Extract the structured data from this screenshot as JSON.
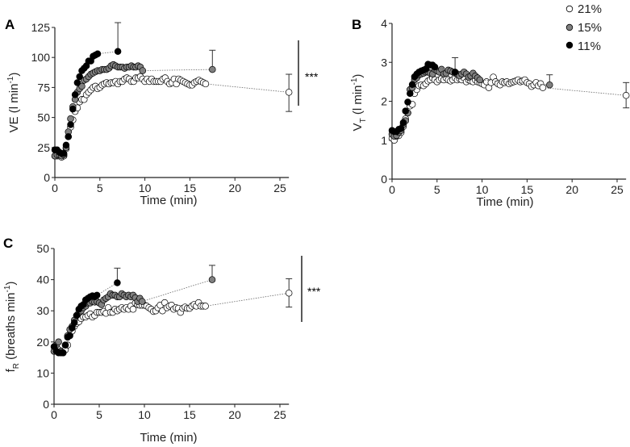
{
  "legend": [
    {
      "label": "21%",
      "color": "#ffffff"
    },
    {
      "label": "15%",
      "color": "#808080"
    },
    {
      "label": "11%",
      "color": "#000000"
    }
  ],
  "chart_data": [
    {
      "panel": "A",
      "type": "scatter",
      "xlabel": "Time (min)",
      "ylabel": {
        "main": "VE (l min",
        "sup": "-1",
        "close": ")"
      },
      "xticks": [
        0,
        5,
        10,
        15,
        20,
        25
      ],
      "yticks": [
        0,
        25,
        50,
        75,
        100,
        125
      ],
      "xlim": [
        0,
        26
      ],
      "ylim": [
        0,
        125
      ],
      "significance": "***",
      "series": [
        {
          "name": "21%",
          "t0": 0,
          "dt": 0.25,
          "values": [
            18,
            18,
            18,
            17,
            18,
            24,
            34,
            42,
            48,
            55,
            58,
            63,
            65,
            65,
            69,
            71,
            73,
            75,
            76,
            74,
            75,
            77,
            78,
            79,
            78,
            79,
            79,
            80,
            78,
            80,
            80,
            82,
            83,
            82,
            80,
            80,
            83,
            83,
            84,
            82,
            80,
            82,
            80,
            82,
            80,
            80,
            80,
            80,
            82,
            83,
            80,
            78,
            79,
            82,
            78,
            82,
            81,
            80,
            79,
            78,
            77,
            77,
            79,
            80,
            81,
            80,
            79,
            78
          ],
          "end": {
            "x": 26,
            "y": 71,
            "err_hi": 86,
            "err_lo": 55
          }
        },
        {
          "name": "15%",
          "t0": 0,
          "dt": 0.25,
          "values": [
            18,
            19,
            19,
            18,
            19,
            25,
            38,
            49,
            59,
            65,
            71,
            74,
            76,
            81,
            82,
            84,
            86,
            87,
            88,
            89,
            89,
            90,
            90,
            90,
            91,
            93,
            94,
            93,
            92,
            92,
            92,
            91,
            92,
            92,
            93,
            92,
            92,
            93,
            92,
            89
          ],
          "end": {
            "x": 17.5,
            "y": 90,
            "err_hi": 106
          }
        },
        {
          "name": "11%",
          "t0": 0,
          "dt": 0.25,
          "values": [
            23,
            23,
            21,
            20,
            20,
            27,
            34,
            44,
            57,
            69,
            79,
            84,
            89,
            91,
            93,
            97,
            97,
            101,
            102,
            103
          ],
          "end": {
            "x": 7,
            "y": 105,
            "err_hi": 129
          }
        }
      ]
    },
    {
      "panel": "B",
      "type": "scatter",
      "xlabel": "Time (min)",
      "ylabel": {
        "main": "V",
        "sub": "T",
        "rest": " (l min",
        "sup": "-1",
        "close": ")"
      },
      "xticks": [
        0,
        5,
        10,
        15,
        20,
        25
      ],
      "yticks": [
        0,
        1,
        2,
        3,
        4
      ],
      "xlim": [
        0,
        26
      ],
      "ylim": [
        0,
        4
      ],
      "series": [
        {
          "name": "21%",
          "t0": 0,
          "dt": 0.25,
          "values": [
            1.05,
            1.0,
            1.1,
            1.12,
            1.2,
            1.35,
            1.55,
            1.7,
            1.88,
            1.92,
            2.2,
            2.3,
            2.4,
            2.42,
            2.4,
            2.45,
            2.52,
            2.55,
            2.6,
            2.55,
            2.5,
            2.55,
            2.58,
            2.55,
            2.6,
            2.55,
            2.52,
            2.55,
            2.6,
            2.55,
            2.58,
            2.55,
            2.6,
            2.5,
            2.55,
            2.52,
            2.5,
            2.55,
            2.5,
            2.48,
            2.45,
            2.42,
            2.5,
            2.35,
            2.48,
            2.62,
            2.5,
            2.45,
            2.42,
            2.5,
            2.48,
            2.5,
            2.45,
            2.48,
            2.5,
            2.52,
            2.55,
            2.5,
            2.52,
            2.55,
            2.48,
            2.45,
            2.38,
            2.42,
            2.48,
            2.4,
            2.45,
            2.35
          ],
          "end": {
            "x": 26,
            "y": 2.15,
            "err_hi": 2.48,
            "err_lo": 1.83
          }
        },
        {
          "name": "15%",
          "t0": 0,
          "dt": 0.25,
          "values": [
            1.15,
            1.1,
            1.12,
            1.2,
            1.25,
            1.4,
            1.5,
            1.7,
            2.3,
            2.35,
            2.55,
            2.6,
            2.68,
            2.7,
            2.72,
            2.75,
            2.75,
            2.72,
            2.7,
            2.82,
            2.78,
            2.75,
            2.82,
            2.7,
            2.72,
            2.8,
            2.78,
            2.75,
            2.72,
            2.7,
            2.65,
            2.7,
            2.75,
            2.7,
            2.62,
            2.65,
            2.72,
            2.65,
            2.6,
            2.55
          ],
          "end": {
            "x": 17.5,
            "y": 2.42,
            "err_hi": 2.68
          }
        },
        {
          "name": "11%",
          "t0": 0,
          "dt": 0.25,
          "values": [
            1.25,
            1.22,
            1.22,
            1.28,
            1.3,
            1.45,
            1.75,
            1.98,
            2.2,
            2.43,
            2.63,
            2.7,
            2.75,
            2.78,
            2.8,
            2.83,
            2.95,
            2.93,
            2.93,
            2.88
          ],
          "end": {
            "x": 7,
            "y": 2.75,
            "err_hi": 3.12
          }
        }
      ]
    },
    {
      "panel": "C",
      "type": "scatter",
      "xlabel": "Time (min)",
      "ylabel": {
        "main": "f",
        "sub": "R",
        "rest": " (breaths min",
        "sup": "-1",
        "close": ")"
      },
      "xticks": [
        0,
        5,
        10,
        15,
        20,
        25
      ],
      "yticks": [
        0,
        10,
        20,
        30,
        40,
        50
      ],
      "xlim": [
        0,
        26
      ],
      "ylim": [
        0,
        50
      ],
      "significance": "***",
      "series": [
        {
          "name": "21%",
          "t0": 0,
          "dt": 0.25,
          "values": [
            17,
            18,
            17.5,
            17,
            17,
            17.5,
            19,
            22.5,
            23.5,
            25,
            26,
            26.5,
            27.5,
            28,
            28,
            28.5,
            29,
            28,
            28.5,
            29.5,
            29.5,
            29.5,
            29.8,
            29.2,
            31,
            29.5,
            29.5,
            30.5,
            30,
            30.5,
            31,
            30.5,
            31,
            30.5,
            31.5,
            30.5,
            32.5,
            32,
            31.8,
            31.8,
            31.8,
            31.5,
            31,
            30.5,
            29.8,
            30,
            31,
            31.8,
            30,
            32.6,
            31,
            31.5,
            31.8,
            30.5,
            31,
            30.8,
            29.5,
            30.8,
            31.2,
            30.8,
            30.8,
            31.5,
            32,
            31.5,
            32.6,
            31.5,
            31.5,
            31.5
          ],
          "end": {
            "x": 26,
            "y": 35.7,
            "err_hi": 40.3,
            "err_lo": 31.2
          }
        },
        {
          "name": "15%",
          "t0": 0,
          "dt": 0.25,
          "values": [
            17,
            19,
            20,
            17,
            16.5,
            19,
            22,
            24,
            25,
            27,
            28.5,
            29.5,
            30,
            31,
            31.5,
            32.5,
            32.5,
            33,
            32.8,
            33,
            32.5,
            32,
            33.5,
            34,
            34.5,
            35.5,
            35,
            35,
            34.5,
            34.5,
            35.5,
            35,
            34.5,
            35,
            34.5,
            35,
            34.2,
            33,
            34,
            33
          ],
          "end": {
            "x": 17.5,
            "y": 40,
            "err_hi": 44.6
          }
        },
        {
          "name": "11%",
          "t0": 0,
          "dt": 0.25,
          "values": [
            18.5,
            17,
            16.5,
            16.5,
            16.5,
            19,
            21.5,
            22,
            24.5,
            26.2,
            28.5,
            30.5,
            31.5,
            32,
            33.5,
            34,
            34.5,
            34.8,
            34.5,
            35
          ],
          "end": {
            "x": 7,
            "y": 39,
            "err_hi": 43.7
          }
        }
      ]
    }
  ]
}
